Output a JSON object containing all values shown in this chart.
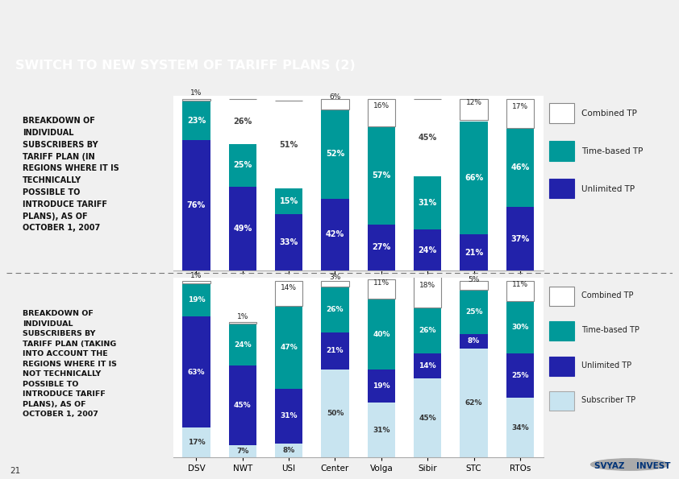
{
  "title": "SWITCH TO NEW SYSTEM OF TARIFF PLANS (2)",
  "categories": [
    "DSV",
    "NWT",
    "USI",
    "Center",
    "Volga",
    "Sibir",
    "STC",
    "RTOs"
  ],
  "chart1_label": "BREAKDOWN OF\nINDIVIDUAL\nSUBSCRIBERS BY\nTARIFF PLAN (IN\nREGIONS WHERE IT IS\nTECHNICALLY\nPOSSIBLE TO\nINTRODUCE TARIFF\nPLANS), AS OF\nOCTOBER 1, 2007",
  "chart1_combined": [
    1,
    0,
    0,
    6,
    16,
    0,
    12,
    17
  ],
  "chart1_timebased": [
    23,
    25,
    15,
    52,
    57,
    31,
    66,
    46
  ],
  "chart1_unlimited": [
    76,
    49,
    33,
    42,
    27,
    24,
    21,
    37
  ],
  "chart1_remainder": [
    0,
    26,
    51,
    0,
    0,
    45,
    1,
    0
  ],
  "chart2_label": "BREAKDOWN OF\nINDIVIDUAL\nSUBSCRIBERS BY\nTARIFF PLAN (TAKING\nINTO ACCOUNT THE\nREGIONS WHERE IT IS\nNOT TECHNICALLY\nPOSSIBLE TO\nINTRODUCE TARIFF\nPLANS), AS OF\nOCTOBER 1, 2007",
  "chart2_combined": [
    1,
    1,
    14,
    3,
    11,
    18,
    5,
    11
  ],
  "chart2_timebased": [
    19,
    24,
    47,
    26,
    40,
    26,
    25,
    30
  ],
  "chart2_unlimited": [
    63,
    45,
    31,
    21,
    19,
    14,
    8,
    25
  ],
  "chart2_subscriber": [
    17,
    7,
    8,
    50,
    31,
    45,
    62,
    34
  ],
  "color_timebased": "#009999",
  "color_unlimited": "#2222AA",
  "color_subscriber": "#C8E4F0",
  "color_combined_bg": "#FFFFFF",
  "label_bg": "#AACFCF",
  "page_bg": "#F0F0F0",
  "header_dark": "#0D2B5E",
  "header_teal": "#00A0A0"
}
